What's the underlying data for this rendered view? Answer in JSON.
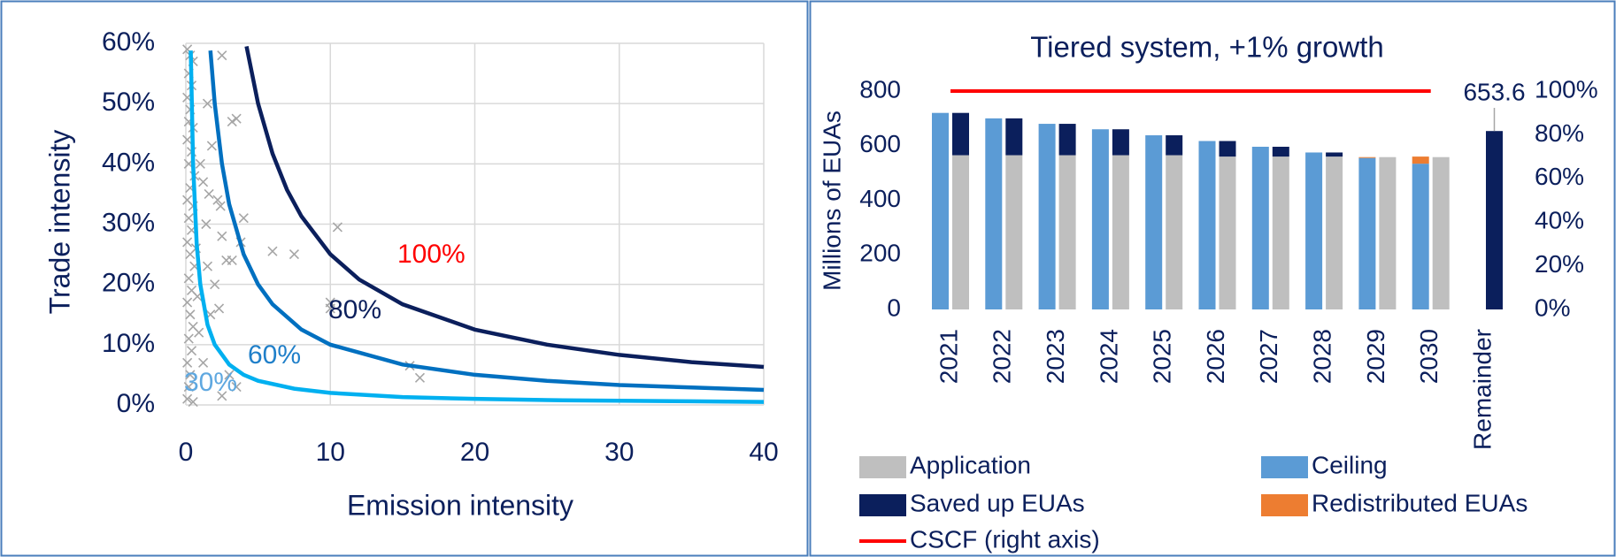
{
  "chart_data": [
    {
      "type": "scatter",
      "xlabel": "Emission intensity",
      "ylabel": "Trade intensity",
      "xlim": [
        0,
        40
      ],
      "xticks": [
        0,
        10,
        20,
        30,
        40
      ],
      "ylim": [
        0,
        60
      ],
      "yticks": [
        {
          "value": 0,
          "label": "0%"
        },
        {
          "value": 10,
          "label": "10%"
        },
        {
          "value": 20,
          "label": "20%"
        },
        {
          "value": 30,
          "label": "30%"
        },
        {
          "value": 40,
          "label": "40%"
        },
        {
          "value": 50,
          "label": "50%"
        },
        {
          "value": 60,
          "label": "60%"
        }
      ],
      "grid": true,
      "color": "#a6a6a6",
      "x": [
        0.1,
        0.3,
        0.5,
        0.2,
        0.4,
        0.1,
        0.3,
        0.2,
        0.5,
        0.1,
        0.4,
        0.2,
        0.6,
        0.3,
        0.1,
        0.5,
        0.2,
        0.4,
        0.1,
        0.3,
        0.6,
        0.2,
        0.4,
        0.1,
        0.3,
        0.5,
        0.2,
        0.4,
        0.1,
        0.3,
        0.2,
        0.1,
        0.5,
        2.5,
        1.5,
        1.8,
        1,
        1.2,
        1.6,
        2.2,
        2.4,
        1.4,
        4,
        3.5,
        3.2,
        2.5,
        3.8,
        3.2,
        2.8,
        1.5,
        2,
        0.8,
        2.3,
        1.7,
        6,
        7.5,
        10.5,
        10,
        10,
        15.5,
        16.2,
        3,
        3.5,
        2.5,
        1.2,
        0.9,
        0.7
      ],
      "values": [
        59,
        58,
        57,
        55,
        53,
        51,
        49,
        47,
        46,
        44,
        42,
        40,
        38,
        36,
        34,
        33,
        31,
        29,
        27,
        25,
        23,
        21,
        19,
        17,
        15,
        13,
        11,
        9,
        7,
        5,
        3,
        1,
        0.5,
        58,
        50,
        43,
        40,
        37,
        35,
        34,
        33,
        30,
        31,
        47.5,
        47,
        28,
        27,
        24,
        24,
        23,
        20,
        18,
        16,
        15,
        25.5,
        25,
        29.5,
        17,
        16,
        6.5,
        4.5,
        5,
        3,
        1.5,
        7,
        12,
        26
      ],
      "lines": [
        {
          "color": "#00b0f0",
          "x": [
            0.34,
            0.5,
            0.75,
            1,
            1.5,
            2,
            3,
            4,
            5,
            7.5,
            10,
            15,
            20,
            25,
            30,
            35,
            40
          ],
          "values": [
            58.8,
            40,
            26.7,
            20,
            13.3,
            10,
            6.7,
            5,
            4,
            2.7,
            2,
            1.3,
            1,
            0.8,
            0.7,
            0.6,
            0.5
          ]
        },
        {
          "color": "#0070c0",
          "x": [
            1.7,
            2,
            2.5,
            3,
            4,
            5,
            6,
            8,
            10,
            15,
            20,
            25,
            30,
            35,
            40
          ],
          "values": [
            58.8,
            50,
            40,
            33.3,
            25,
            20,
            16.7,
            12.5,
            10,
            6.7,
            5,
            4,
            3.3,
            2.9,
            2.5
          ]
        },
        {
          "color": "#0b1f5c",
          "x": [
            4.2,
            5,
            6,
            7,
            8,
            10,
            12,
            15,
            20,
            25,
            30,
            35,
            40
          ],
          "values": [
            59.5,
            50,
            41.7,
            35.7,
            31.3,
            25,
            20.8,
            16.7,
            12.5,
            10,
            8.3,
            7.1,
            6.3
          ]
        }
      ],
      "annotations": [
        {
          "text": "30%",
          "color": "#5fa8e0"
        },
        {
          "text": "60%",
          "color": "#1f7fc9"
        },
        {
          "text": "80%",
          "color": "#0b1f5c"
        },
        {
          "text": "100%",
          "color": "#ff0000"
        }
      ]
    },
    {
      "type": "bar",
      "title": "Tiered system, +1% growth",
      "ylabel": "Millions of EUAs",
      "categories": [
        "2021",
        "2022",
        "2023",
        "2024",
        "2025",
        "2026",
        "2027",
        "2028",
        "2029",
        "2030",
        "Remainder"
      ],
      "ylim": [
        0,
        800
      ],
      "yticks": [
        0,
        200,
        400,
        600,
        800
      ],
      "y2lim": [
        0,
        100
      ],
      "y2ticks": [
        {
          "value": 0,
          "label": "0%"
        },
        {
          "value": 20,
          "label": "20%"
        },
        {
          "value": 40,
          "label": "40%"
        },
        {
          "value": 60,
          "label": "60%"
        },
        {
          "value": 80,
          "label": "80%"
        },
        {
          "value": 100,
          "label": "100%"
        }
      ],
      "grid": false,
      "legend": "bottom",
      "series": [
        {
          "name": "Application",
          "color": "#bfbfbf",
          "values": [
            565,
            565,
            565,
            565,
            565,
            560,
            560,
            560,
            558,
            558,
            null
          ]
        },
        {
          "name": "Ceiling",
          "color": "#5b9bd5",
          "values": [
            720,
            700,
            680,
            660,
            638,
            617,
            596,
            575,
            555,
            534,
            null
          ]
        },
        {
          "name": "Saved up EUAs",
          "color": "#0b1f5c",
          "values": [
            155,
            135,
            115,
            95,
            73,
            57,
            36,
            15,
            0,
            0,
            653.6
          ]
        },
        {
          "name": "Redistributed EUAs",
          "color": "#ed7d31",
          "values": [
            0,
            0,
            0,
            0,
            0,
            0,
            0,
            0,
            3,
            26,
            null
          ]
        },
        {
          "name": "CSCF (right axis)",
          "color": "#ff0000",
          "type": "line",
          "axis": "y2",
          "values": [
            100,
            100,
            100,
            100,
            100,
            100,
            100,
            100,
            100,
            100,
            null
          ]
        }
      ]
    }
  ]
}
